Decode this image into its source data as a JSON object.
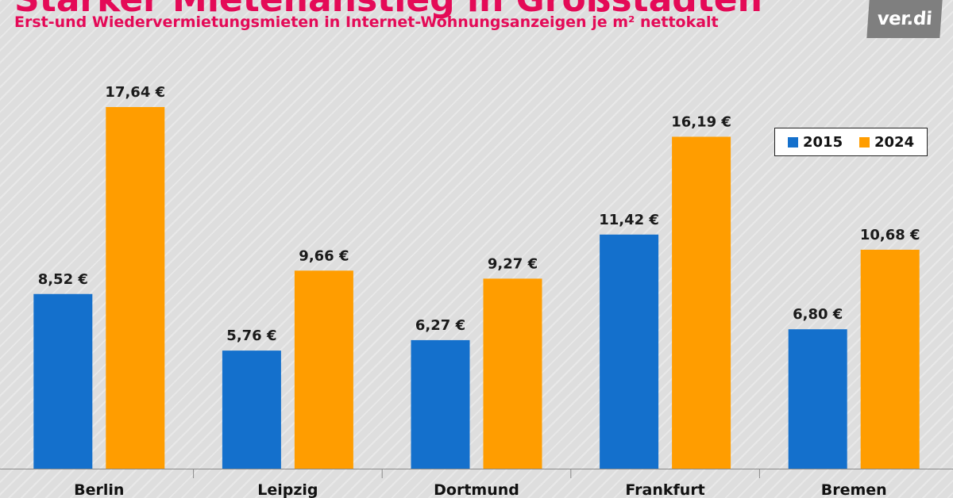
{
  "header": {
    "title": "Starker Mietenanstieg in Großstädten",
    "subtitle": "Erst-und Wiedervermietungsmieten  in Internet-Wohnungsanzeigen je m² nettokalt",
    "logo_text": "ver.di"
  },
  "colors": {
    "title": "#e40a57",
    "series_2015": "#1470cc",
    "series_2024": "#ff9d00",
    "logo_bg": "#7f7f7f"
  },
  "chart_data": {
    "type": "bar",
    "title": "Starker Mietenanstieg in Großstädten",
    "subtitle": "Erst-und Wiedervermietungsmieten  in Internet-Wohnungsanzeigen je m² nettokalt",
    "categories": [
      "Berlin",
      "Leipzig",
      "Dortmund",
      "Frankfurt",
      "Bremen"
    ],
    "series": [
      {
        "name": "2015",
        "color": "#1470cc",
        "values": [
          8.52,
          5.76,
          6.27,
          11.42,
          6.8
        ],
        "labels": [
          "8,52 €",
          "5,76 €",
          "6,27 €",
          "11,42 €",
          "6,80 €"
        ]
      },
      {
        "name": "2024",
        "color": "#ff9d00",
        "values": [
          17.64,
          9.66,
          9.27,
          16.19,
          10.68
        ],
        "labels": [
          "17,64 €",
          "9,66 €",
          "9,27 €",
          "16,19 €",
          "10,68 €"
        ]
      }
    ],
    "unit": "€ / m²",
    "xlabel": "",
    "ylabel": "",
    "ylim": [
      0,
      18.5
    ],
    "grid": false,
    "legend_position": "top-right"
  }
}
